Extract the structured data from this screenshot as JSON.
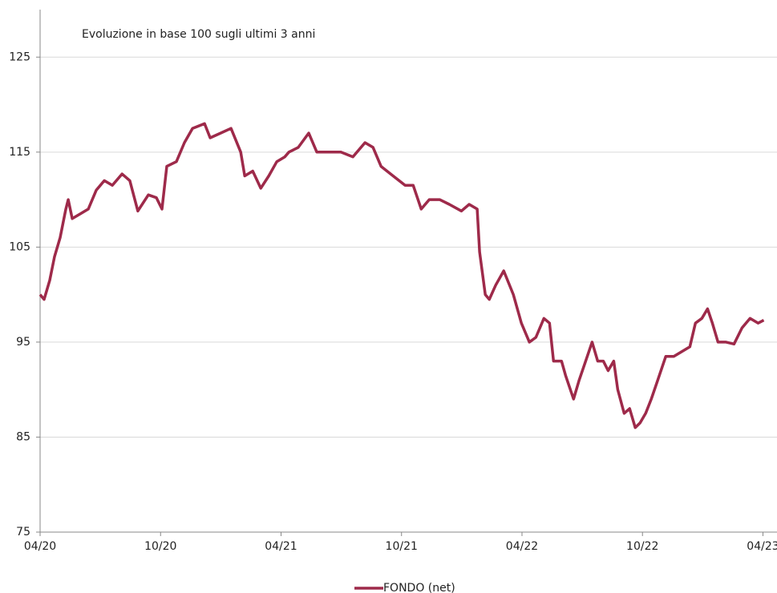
{
  "chart_data": {
    "type": "line",
    "title": "Evoluzione in base 100 sugli ultimi 3 anni",
    "x": [
      0,
      0.2,
      0.48,
      0.72,
      1.0,
      1.28,
      1.4,
      1.6,
      2.0,
      2.4,
      2.8,
      3.2,
      3.6,
      4.08,
      4.47,
      4.87,
      5.39,
      5.79,
      6.07,
      6.31,
      6.79,
      7.19,
      7.59,
      8.19,
      8.47,
      8.99,
      9.51,
      9.99,
      10.19,
      10.59,
      10.99,
      11.39,
      11.79,
      12.19,
      12.39,
      12.86,
      13.38,
      13.78,
      14.38,
      14.98,
      15.58,
      16.18,
      16.58,
      16.98,
      17.58,
      18.18,
      18.58,
      18.98,
      19.38,
      19.9,
      20.38,
      20.98,
      21.37,
      21.77,
      21.89,
      22.17,
      22.37,
      22.69,
      23.09,
      23.57,
      23.97,
      24.37,
      24.69,
      25.09,
      25.37,
      25.57,
      25.97,
      26.17,
      26.57,
      26.85,
      27.17,
      27.49,
      27.77,
      28.05,
      28.29,
      28.57,
      28.77,
      29.09,
      29.36,
      29.64,
      29.88,
      30.16,
      30.44,
      30.76,
      31.16,
      31.56,
      31.96,
      32.36,
      32.64,
      32.96,
      33.24,
      33.48,
      33.76,
      34.16,
      34.56,
      34.96,
      35.36,
      35.76,
      36.04
    ],
    "series": [
      {
        "name": "FONDO (net)",
        "color": "#9e2a4a",
        "values": [
          100,
          99.5,
          101.5,
          104,
          106,
          109,
          110,
          108,
          108.5,
          109,
          111,
          112,
          111.5,
          112.7,
          112,
          108.8,
          110.5,
          110.2,
          109,
          113.5,
          114,
          116,
          117.5,
          118,
          116.5,
          117,
          117.5,
          115,
          112.5,
          113,
          111.2,
          112.5,
          114,
          114.5,
          115,
          115.5,
          117,
          115,
          115,
          115,
          114.5,
          116,
          115.5,
          113.5,
          112.5,
          111.5,
          111.5,
          109,
          110,
          110,
          109.5,
          108.8,
          109.5,
          109,
          104.5,
          100,
          99.5,
          101,
          102.5,
          100,
          97,
          95,
          95.5,
          97.5,
          97,
          93,
          93,
          91.5,
          89,
          91,
          93,
          95,
          93,
          93,
          92,
          93,
          90,
          87.5,
          88,
          86,
          86.5,
          87.5,
          89,
          91,
          93.5,
          93.5,
          94,
          94.5,
          97,
          97.5,
          98.5,
          97,
          95,
          95,
          94.8,
          96.5,
          97.5,
          97,
          97.3
        ]
      }
    ],
    "xlim": [
      0,
      36.7
    ],
    "xticks": [
      {
        "value": 0,
        "label": "04/20"
      },
      {
        "value": 6,
        "label": "10/20"
      },
      {
        "value": 12,
        "label": "04/21"
      },
      {
        "value": 18,
        "label": "10/21"
      },
      {
        "value": 24,
        "label": "04/22"
      },
      {
        "value": 30,
        "label": "10/22"
      },
      {
        "value": 36,
        "label": "04/23"
      }
    ],
    "ylim": [
      75,
      130
    ],
    "yticks": [
      75,
      85,
      95,
      105,
      115,
      125
    ],
    "grid": true
  }
}
